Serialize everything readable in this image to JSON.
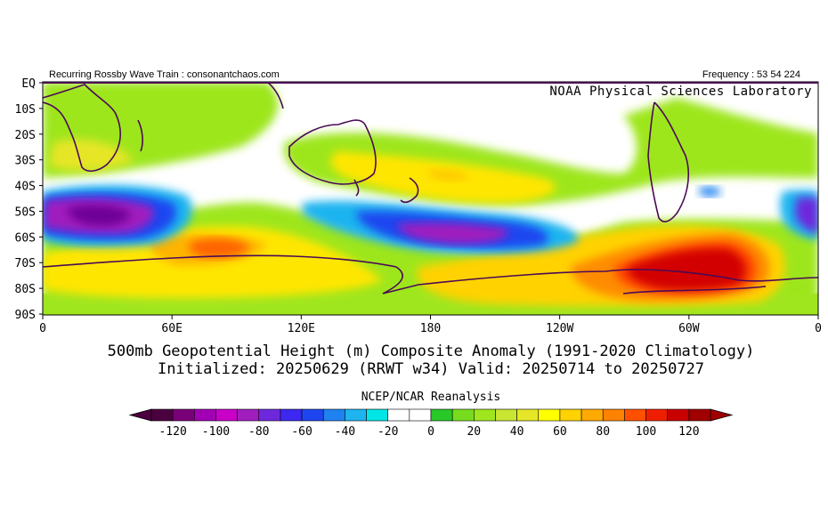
{
  "header": {
    "left_label": "Recurring Rossby Wave Train : consonantchaos.com",
    "right_label": "Frequency : 53 54 224",
    "lab_label": "NOAA Physical Sciences Laboratory"
  },
  "axes": {
    "lat_labels": [
      "EQ",
      "10S",
      "20S",
      "30S",
      "40S",
      "50S",
      "60S",
      "70S",
      "80S",
      "90S"
    ],
    "lon_labels": [
      "0",
      "60E",
      "120E",
      "180",
      "120W",
      "60W",
      "0"
    ]
  },
  "title": {
    "line1": "500mb Geopotential Height (m) Composite Anomaly (1991-2020 Climatology)",
    "line2": "Initialized: 20250629 (RRWT w34) Valid: 20250714 to 20250727"
  },
  "colorbar": {
    "source_label": "NCEP/NCAR Reanalysis",
    "tick_labels": [
      "-120",
      "-100",
      "-80",
      "-60",
      "-40",
      "-20",
      "0",
      "20",
      "40",
      "60",
      "80",
      "100",
      "120"
    ],
    "colors": [
      "#4b0040",
      "#7a007a",
      "#a100b4",
      "#c800c8",
      "#a01ebe",
      "#6e28dc",
      "#3c28f0",
      "#1e46f0",
      "#1e82f0",
      "#1eb4f0",
      "#00e6e6",
      "#ffffff",
      "#ffffff",
      "#28c828",
      "#78dc1e",
      "#a0e61e",
      "#c8e632",
      "#e6e628",
      "#ffff00",
      "#ffd200",
      "#ffaa00",
      "#ff8200",
      "#ff5000",
      "#f01e00",
      "#c80000",
      "#a00000"
    ]
  },
  "legend_colors": {
    "land_outline": "#4b0a55",
    "neutral": "#ffffff"
  }
}
